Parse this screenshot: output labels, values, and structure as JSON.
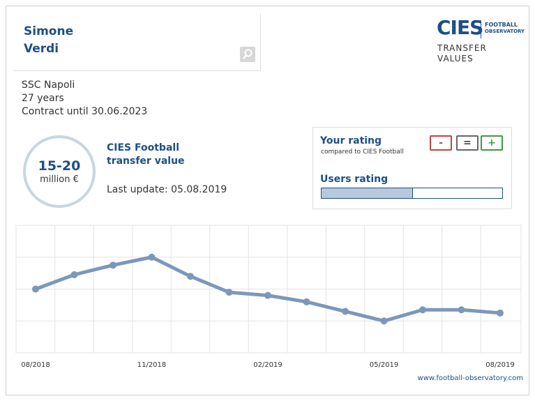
{
  "player": {
    "first_name": "Simone",
    "last_name": "Verdi",
    "club": "SSC Napoli",
    "age": "27 years",
    "contract": "Contract until 30.06.2023"
  },
  "logo": {
    "brand": "CIES",
    "brand_sub_1": "FOOTBALL",
    "brand_sub_2": "OBSERVATORY",
    "section_1": "TRANSFER",
    "section_2": "VALUES"
  },
  "value": {
    "range": "15-20",
    "unit": "million €",
    "label_1": "CIES Football",
    "label_2": "transfer value",
    "last_update": "Last update: 05.08.2019"
  },
  "rating": {
    "title": "Your rating",
    "subtitle": "compared to CIES Football",
    "buttons": [
      "-",
      "=",
      "+"
    ],
    "users_title": "Users rating",
    "users_fill": 50
  },
  "footer": "www.football-observatory.com",
  "chart_data": {
    "type": "line",
    "categories": [
      "08/2018",
      null,
      null,
      "11/2018",
      null,
      null,
      "02/2019",
      null,
      null,
      "05/2019",
      null,
      null,
      "08/2019"
    ],
    "series": [
      {
        "color": "#7b98bb",
        "values": [
          2.0,
          2.45,
          2.75,
          3.0,
          2.4,
          1.9,
          1.8,
          1.6,
          1.3,
          1.0,
          1.35,
          1.35,
          1.25
        ]
      }
    ],
    "ylim": [
      0,
      4
    ],
    "yticks": [
      0,
      1,
      2,
      3,
      4
    ],
    "grid": true
  }
}
